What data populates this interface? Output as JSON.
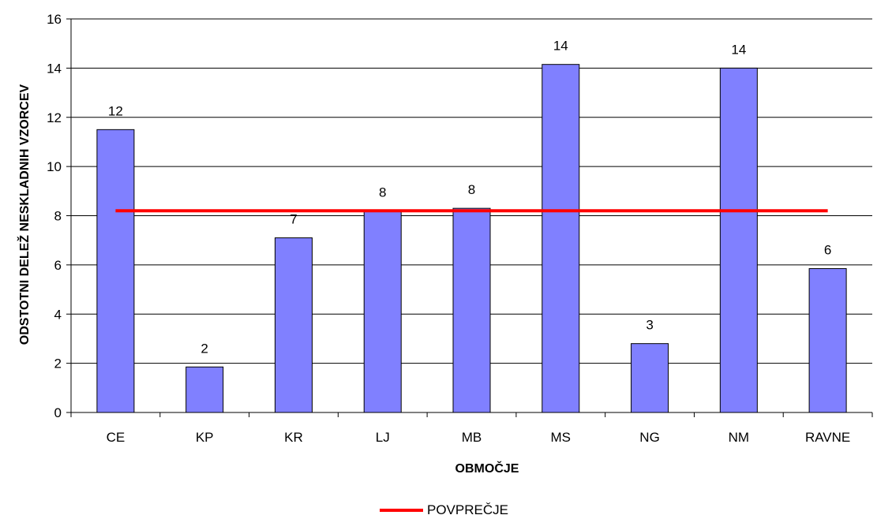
{
  "chart_data": {
    "type": "bar",
    "categories": [
      "CE",
      "KP",
      "KR",
      "LJ",
      "MB",
      "MS",
      "NG",
      "NM",
      "RAVNE"
    ],
    "values": [
      11.5,
      1.85,
      7.1,
      8.2,
      8.3,
      14.15,
      2.8,
      14.0,
      5.85
    ],
    "data_labels": [
      "12",
      "2",
      "7",
      "8",
      "8",
      "14",
      "3",
      "14",
      "6"
    ],
    "average": {
      "name": "POVPREČJE",
      "value": 8.2,
      "color": "#ff0000"
    },
    "xlabel": "OBMOČJE",
    "ylabel": "ODSTOTNI DELEŽ NESKLADNIH VZORCEV",
    "ylim": [
      0,
      16
    ],
    "yticks": [
      "0",
      "2",
      "4",
      "6",
      "8",
      "10",
      "12",
      "14",
      "16"
    ],
    "bar_color": "#8080ff",
    "grid": true,
    "legend_position": "bottom"
  }
}
